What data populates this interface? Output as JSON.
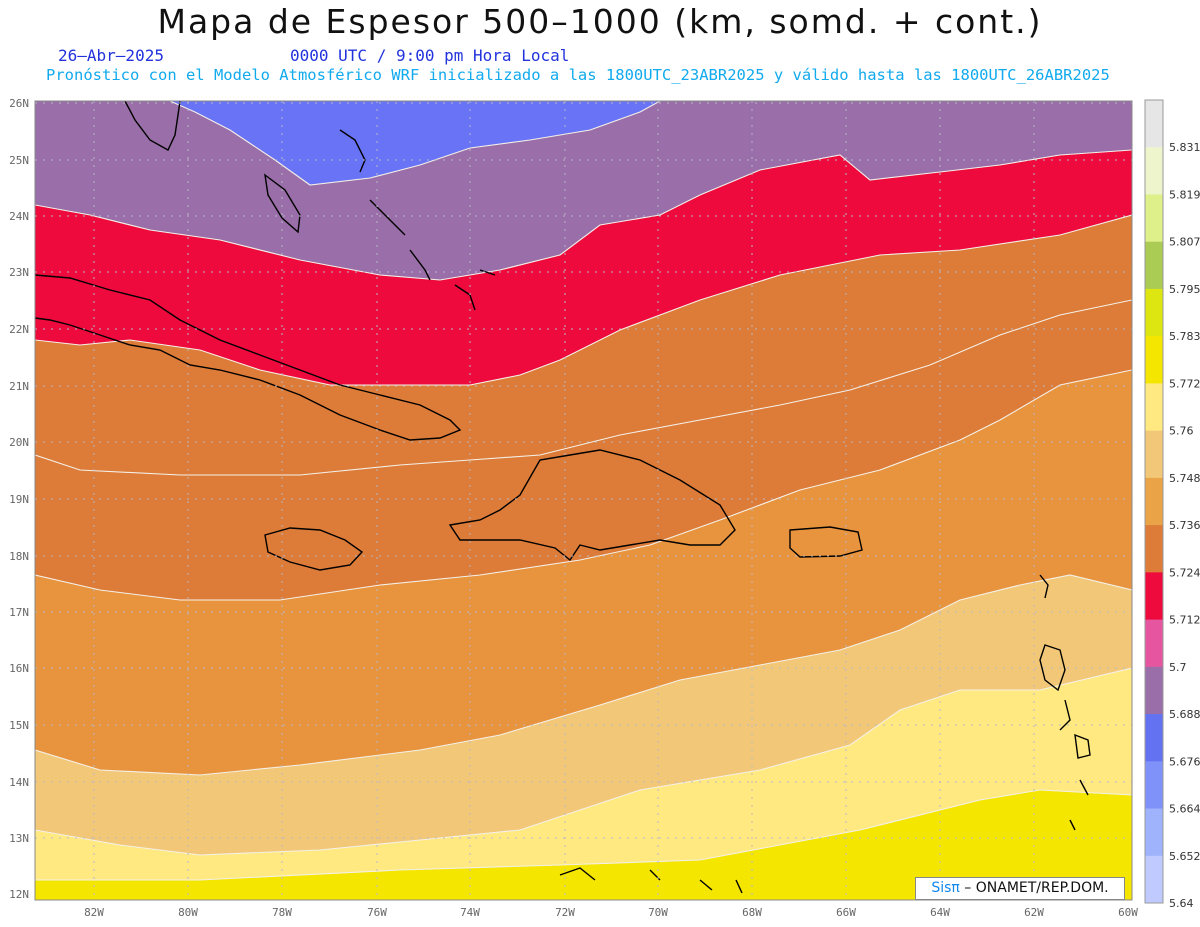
{
  "header": {
    "title": "Mapa de Espesor 500–1000 (km, somd. + cont.)",
    "date": "26–Abr–2025",
    "time": "0000 UTC / 9:00 pm Hora Local",
    "model": "Pronóstico con el Modelo Atmosférico WRF inicializado a las 1800UTC_23ABR2025 y válido hasta las  1800UTC_26ABR2025"
  },
  "axes": {
    "lat_labels": [
      "26N",
      "25N",
      "24N",
      "23N",
      "22N",
      "21N",
      "20N",
      "19N",
      "18N",
      "17N",
      "16N",
      "15N",
      "14N",
      "13N",
      "12N"
    ],
    "lon_labels": [
      "82W",
      "80W",
      "78W",
      "76W",
      "74W",
      "72W",
      "70W",
      "68W",
      "66W",
      "64W",
      "62W",
      "60W"
    ]
  },
  "colorbar": {
    "labels": [
      "5.831",
      "5.819",
      "5.807",
      "5.795",
      "5.783",
      "5.772",
      "5.76",
      "5.748",
      "5.736",
      "5.724",
      "5.712",
      "5.7",
      "5.688",
      "5.676",
      "5.664",
      "5.652",
      "5.64"
    ],
    "colors": [
      "#e6e6e6",
      "#eef5cc",
      "#ddf08a",
      "#aacc55",
      "#dde611",
      "#f5e600",
      "#ffe980",
      "#f2c878",
      "#eaa447",
      "#dd7b38",
      "#ee0a3c",
      "#e655a0",
      "#9a6ea8",
      "#6272f0",
      "#7f92fa",
      "#9fb2fc",
      "#c0cafe"
    ]
  },
  "field_colors": {
    "t5676": "#6873f5",
    "t5688": "#9a6ea8",
    "t5700": "#e655a0",
    "t5712": "#ee0a3c",
    "t5724": "#dd7b38",
    "t5736": "#e8943e",
    "t5748": "#f2c878",
    "t5760": "#ffe980",
    "t5772": "#f5e600"
  },
  "credit": {
    "sis": "Sisπ",
    "rest": " – ONAMET/REP.DOM."
  }
}
